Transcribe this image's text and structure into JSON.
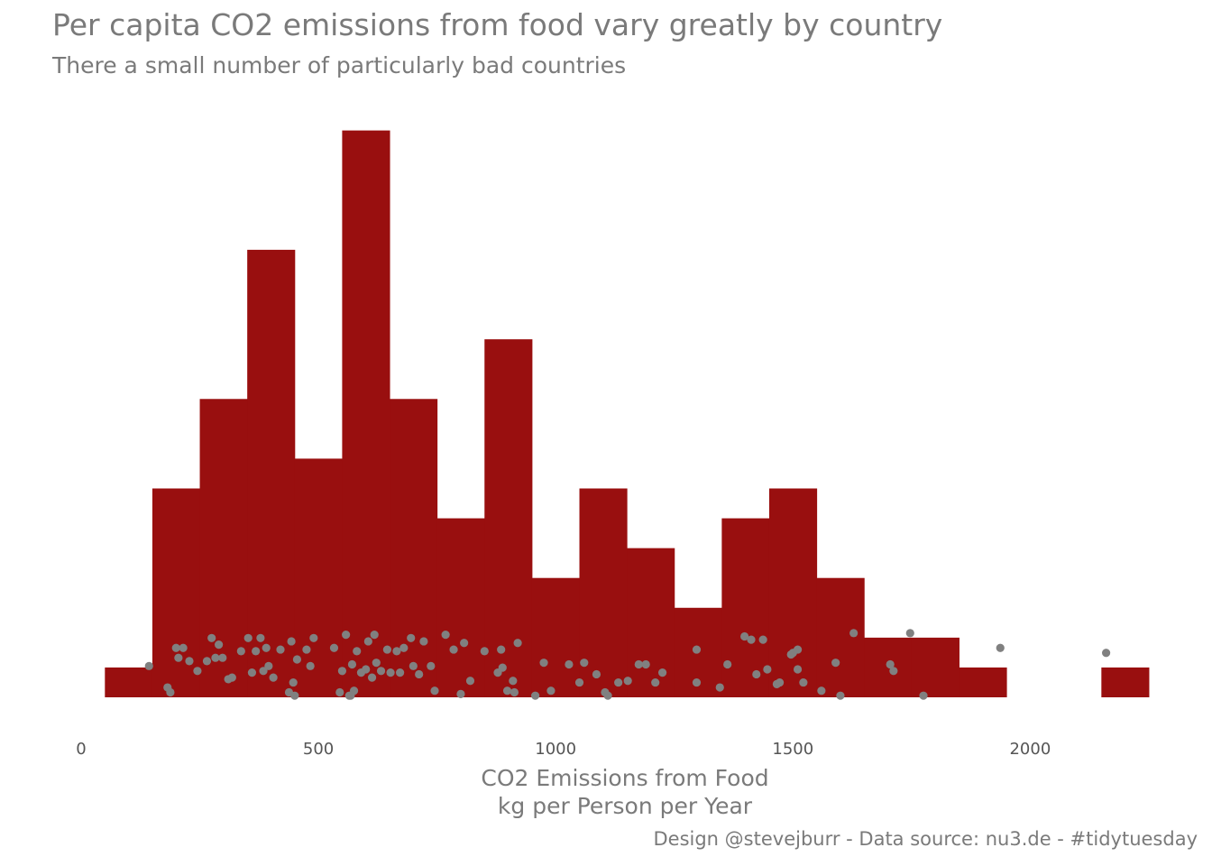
{
  "colors": {
    "bar": "#990f0f",
    "point": "#808080",
    "text": "#7a7a7a"
  },
  "title": "Per capita CO2 emissions from food vary greatly by country",
  "subtitle": "There a small number of particularly bad countries",
  "caption": "Design @stevejburr - Data source: nu3.de - #tidytuesday",
  "chart_data": {
    "type": "bar",
    "xlabel": [
      "CO2 Emissions from Food",
      "kg per Person per Year"
    ],
    "ylabel": "",
    "xlim": [
      0,
      2290
    ],
    "x_ticks": [
      0,
      500,
      1000,
      1500,
      2000
    ],
    "x_tick_labels": [
      "0",
      "500",
      "1000",
      "1500",
      "2000"
    ],
    "grid": false,
    "bin_width": 100,
    "histogram": [
      {
        "x0": 50,
        "x1": 150,
        "count": 1
      },
      {
        "x0": 150,
        "x1": 250,
        "count": 7
      },
      {
        "x0": 250,
        "x1": 350,
        "count": 10
      },
      {
        "x0": 350,
        "x1": 450,
        "count": 15
      },
      {
        "x0": 450,
        "x1": 550,
        "count": 8
      },
      {
        "x0": 550,
        "x1": 650,
        "count": 19
      },
      {
        "x0": 650,
        "x1": 750,
        "count": 10
      },
      {
        "x0": 750,
        "x1": 850,
        "count": 6
      },
      {
        "x0": 850,
        "x1": 950,
        "count": 12
      },
      {
        "x0": 950,
        "x1": 1050,
        "count": 4
      },
      {
        "x0": 1050,
        "x1": 1150,
        "count": 7
      },
      {
        "x0": 1150,
        "x1": 1250,
        "count": 5
      },
      {
        "x0": 1250,
        "x1": 1350,
        "count": 3
      },
      {
        "x0": 1350,
        "x1": 1450,
        "count": 6
      },
      {
        "x0": 1450,
        "x1": 1550,
        "count": 7
      },
      {
        "x0": 1550,
        "x1": 1650,
        "count": 4
      },
      {
        "x0": 1650,
        "x1": 1750,
        "count": 2
      },
      {
        "x0": 1750,
        "x1": 1850,
        "count": 2
      },
      {
        "x0": 1850,
        "x1": 1950,
        "count": 1
      },
      {
        "x0": 1950,
        "x1": 2050,
        "count": 0
      },
      {
        "x0": 2050,
        "x1": 2150,
        "count": 0
      },
      {
        "x0": 2150,
        "x1": 2250,
        "count": 1
      }
    ],
    "ylim": [
      0,
      19.2
    ],
    "points": [
      [
        143,
        0.95
      ],
      [
        182,
        0.3
      ],
      [
        188,
        0.15
      ],
      [
        200,
        1.5
      ],
      [
        205,
        1.2
      ],
      [
        215,
        1.5
      ],
      [
        228,
        1.1
      ],
      [
        245,
        0.8
      ],
      [
        265,
        1.1
      ],
      [
        275,
        1.8
      ],
      [
        283,
        1.2
      ],
      [
        290,
        1.6
      ],
      [
        298,
        1.2
      ],
      [
        310,
        0.55
      ],
      [
        318,
        0.6
      ],
      [
        337,
        1.4
      ],
      [
        352,
        1.8
      ],
      [
        360,
        0.75
      ],
      [
        368,
        1.4
      ],
      [
        378,
        1.8
      ],
      [
        384,
        0.8
      ],
      [
        390,
        1.5
      ],
      [
        395,
        0.95
      ],
      [
        405,
        0.6
      ],
      [
        420,
        1.45
      ],
      [
        438,
        0.15
      ],
      [
        443,
        1.7
      ],
      [
        447,
        0.45
      ],
      [
        450,
        0.05
      ],
      [
        455,
        1.15
      ],
      [
        475,
        1.45
      ],
      [
        483,
        0.95
      ],
      [
        490,
        1.8
      ],
      [
        533,
        1.5
      ],
      [
        545,
        0.15
      ],
      [
        550,
        0.8
      ],
      [
        558,
        1.9
      ],
      [
        565,
        0.05
      ],
      [
        568,
        0.05
      ],
      [
        571,
        1.0
      ],
      [
        575,
        0.2
      ],
      [
        581,
        1.4
      ],
      [
        590,
        0.75
      ],
      [
        600,
        0.85
      ],
      [
        605,
        1.7
      ],
      [
        613,
        0.6
      ],
      [
        618,
        1.9
      ],
      [
        622,
        1.05
      ],
      [
        632,
        0.8
      ],
      [
        645,
        1.45
      ],
      [
        652,
        0.75
      ],
      [
        665,
        1.4
      ],
      [
        672,
        0.75
      ],
      [
        680,
        1.5
      ],
      [
        695,
        1.8
      ],
      [
        700,
        0.95
      ],
      [
        712,
        0.7
      ],
      [
        722,
        1.7
      ],
      [
        737,
        0.95
      ],
      [
        745,
        0.2
      ],
      [
        768,
        1.9
      ],
      [
        785,
        1.45
      ],
      [
        800,
        0.1
      ],
      [
        807,
        1.65
      ],
      [
        820,
        0.5
      ],
      [
        850,
        1.4
      ],
      [
        878,
        0.75
      ],
      [
        885,
        1.45
      ],
      [
        888,
        0.9
      ],
      [
        898,
        0.2
      ],
      [
        910,
        0.5
      ],
      [
        913,
        0.15
      ],
      [
        920,
        1.65
      ],
      [
        957,
        0.05
      ],
      [
        975,
        1.05
      ],
      [
        990,
        0.2
      ],
      [
        1028,
        1.0
      ],
      [
        1050,
        0.45
      ],
      [
        1060,
        1.05
      ],
      [
        1086,
        0.7
      ],
      [
        1104,
        0.15
      ],
      [
        1110,
        0.05
      ],
      [
        1132,
        0.45
      ],
      [
        1152,
        0.5
      ],
      [
        1175,
        1.0
      ],
      [
        1190,
        1.0
      ],
      [
        1210,
        0.45
      ],
      [
        1225,
        0.75
      ],
      [
        1297,
        1.45
      ],
      [
        1297,
        0.45
      ],
      [
        1346,
        0.3
      ],
      [
        1362,
        1.0
      ],
      [
        1398,
        1.85
      ],
      [
        1412,
        1.75
      ],
      [
        1423,
        0.7
      ],
      [
        1437,
        1.75
      ],
      [
        1446,
        0.85
      ],
      [
        1466,
        0.4
      ],
      [
        1472,
        0.45
      ],
      [
        1496,
        1.3
      ],
      [
        1500,
        1.35
      ],
      [
        1510,
        1.45
      ],
      [
        1510,
        0.85
      ],
      [
        1522,
        0.45
      ],
      [
        1560,
        0.2
      ],
      [
        1590,
        1.05
      ],
      [
        1600,
        0.05
      ],
      [
        1628,
        1.95
      ],
      [
        1705,
        1.0
      ],
      [
        1712,
        0.8
      ],
      [
        1747,
        1.95
      ],
      [
        1775,
        0.05
      ],
      [
        1937,
        1.5
      ],
      [
        2160,
        1.35
      ]
    ]
  }
}
